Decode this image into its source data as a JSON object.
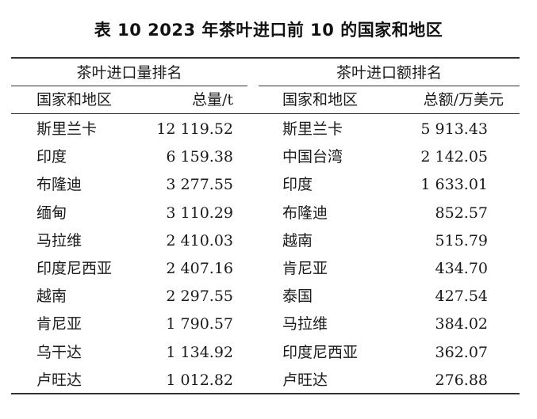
{
  "title": "表 10  2023 年茶叶进口前 10 的国家和地区",
  "header": {
    "import_volume_group": "茶叶进口量排名",
    "import_value_group": "茶叶进口额排名",
    "col_region_1": "国家和地区",
    "col_volume": "总量/t",
    "col_region_2": "国家和地区",
    "col_value": "总额/万美元"
  },
  "rows": [
    {
      "volume_region": "斯里兰卡",
      "volume": "12 119.52",
      "value_region": "斯里兰卡",
      "value": "5 913.43"
    },
    {
      "volume_region": "印度",
      "volume": "6 159.38",
      "value_region": "中国台湾",
      "value": "2 142.05"
    },
    {
      "volume_region": "布隆迪",
      "volume": "3 277.55",
      "value_region": "印度",
      "value": "1 633.01"
    },
    {
      "volume_region": "缅甸",
      "volume": "3 110.29",
      "value_region": "布隆迪",
      "value": "852.57"
    },
    {
      "volume_region": "马拉维",
      "volume": "2 410.03",
      "value_region": "越南",
      "value": "515.79"
    },
    {
      "volume_region": "印度尼西亚",
      "volume": "2 407.16",
      "value_region": "肯尼亚",
      "value": "434.70"
    },
    {
      "volume_region": "越南",
      "volume": "2 297.55",
      "value_region": "泰国",
      "value": "427.54"
    },
    {
      "volume_region": "肯尼亚",
      "volume": "1 790.57",
      "value_region": "马拉维",
      "value": "384.02"
    },
    {
      "volume_region": "乌干达",
      "volume": "1 134.92",
      "value_region": "印度尼西亚",
      "value": "362.07"
    },
    {
      "volume_region": "卢旺达",
      "volume": "1 012.82",
      "value_region": "卢旺达",
      "value": "276.88"
    }
  ]
}
